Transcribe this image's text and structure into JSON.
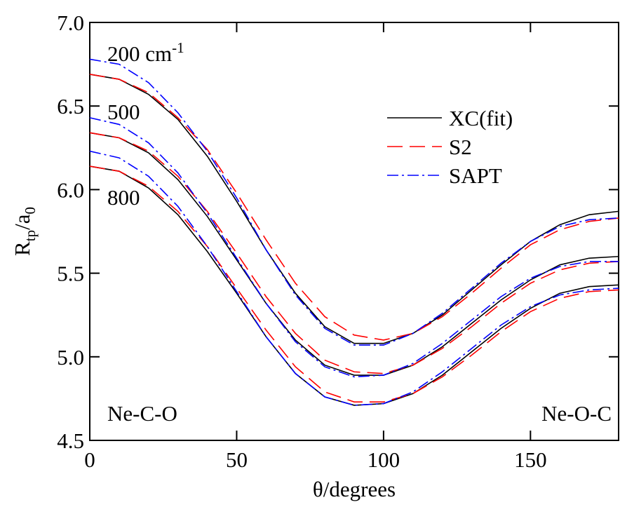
{
  "chart_data": {
    "type": "line",
    "x_label": "θ/degrees",
    "y_label_parts": [
      "R",
      "tp",
      "/a",
      "0"
    ],
    "x": [
      0,
      10,
      20,
      30,
      40,
      50,
      60,
      70,
      80,
      90,
      100,
      110,
      120,
      130,
      140,
      150,
      160,
      170,
      180
    ],
    "xlim": [
      0,
      180
    ],
    "xticks": [
      0,
      50,
      100,
      150
    ],
    "ylim": [
      4.5,
      7.0
    ],
    "yticks": [
      4.5,
      {
        "value": 5,
        "label": "5.0"
      },
      5.5,
      {
        "value": 6,
        "label": "6.0"
      },
      6.5,
      {
        "value": 7,
        "label": "7.0"
      }
    ],
    "annotations": [
      {
        "text": "200 cm",
        "sup": "-1"
      },
      {
        "text": "500"
      },
      {
        "text": "800"
      },
      {
        "text": "Ne-C-O"
      },
      {
        "text": "Ne-O-C"
      }
    ],
    "series": [
      {
        "name": "XC(fit)",
        "color": "#000000",
        "style": "solid",
        "curves": [
          [
            6.69,
            6.66,
            6.57,
            6.42,
            6.2,
            5.93,
            5.64,
            5.38,
            5.18,
            5.08,
            5.08,
            5.14,
            5.25,
            5.4,
            5.55,
            5.69,
            5.79,
            5.85,
            5.87
          ],
          [
            6.34,
            6.31,
            6.22,
            6.06,
            5.84,
            5.58,
            5.32,
            5.1,
            4.95,
            4.89,
            4.89,
            4.95,
            5.06,
            5.2,
            5.34,
            5.46,
            5.55,
            5.59,
            5.6
          ],
          [
            6.14,
            6.11,
            6.01,
            5.85,
            5.63,
            5.38,
            5.12,
            4.9,
            4.76,
            4.71,
            4.72,
            4.78,
            4.89,
            5.03,
            5.17,
            5.29,
            5.38,
            5.42,
            5.43
          ]
        ]
      },
      {
        "name": "S2",
        "color": "#ff0000",
        "style": "dashed",
        "curves": [
          [
            6.69,
            6.66,
            6.58,
            6.43,
            6.24,
            5.98,
            5.7,
            5.44,
            5.24,
            5.13,
            5.1,
            5.14,
            5.24,
            5.38,
            5.53,
            5.67,
            5.76,
            5.81,
            5.83
          ],
          [
            6.34,
            6.31,
            6.23,
            6.08,
            5.87,
            5.62,
            5.36,
            5.14,
            4.98,
            4.91,
            4.9,
            4.95,
            5.05,
            5.18,
            5.32,
            5.44,
            5.52,
            5.56,
            5.57
          ],
          [
            6.14,
            6.11,
            6.02,
            5.87,
            5.66,
            5.41,
            5.16,
            4.94,
            4.79,
            4.73,
            4.73,
            4.78,
            4.88,
            5.01,
            5.15,
            5.27,
            5.35,
            5.39,
            5.4
          ]
        ]
      },
      {
        "name": "SAPT",
        "color": "#0000ff",
        "style": "dashdot",
        "curves": [
          [
            6.78,
            6.75,
            6.64,
            6.46,
            6.23,
            5.95,
            5.64,
            5.37,
            5.17,
            5.07,
            5.07,
            5.14,
            5.26,
            5.41,
            5.56,
            5.69,
            5.78,
            5.82,
            5.83
          ],
          [
            6.43,
            6.39,
            6.28,
            6.1,
            5.86,
            5.59,
            5.32,
            5.09,
            4.94,
            4.88,
            4.89,
            4.96,
            5.08,
            5.22,
            5.36,
            5.47,
            5.54,
            5.57,
            5.57
          ],
          [
            6.23,
            6.19,
            6.08,
            5.9,
            5.66,
            5.39,
            5.12,
            4.9,
            4.76,
            4.71,
            4.72,
            4.79,
            4.91,
            5.05,
            5.19,
            5.3,
            5.37,
            5.4,
            5.41
          ]
        ]
      }
    ]
  }
}
